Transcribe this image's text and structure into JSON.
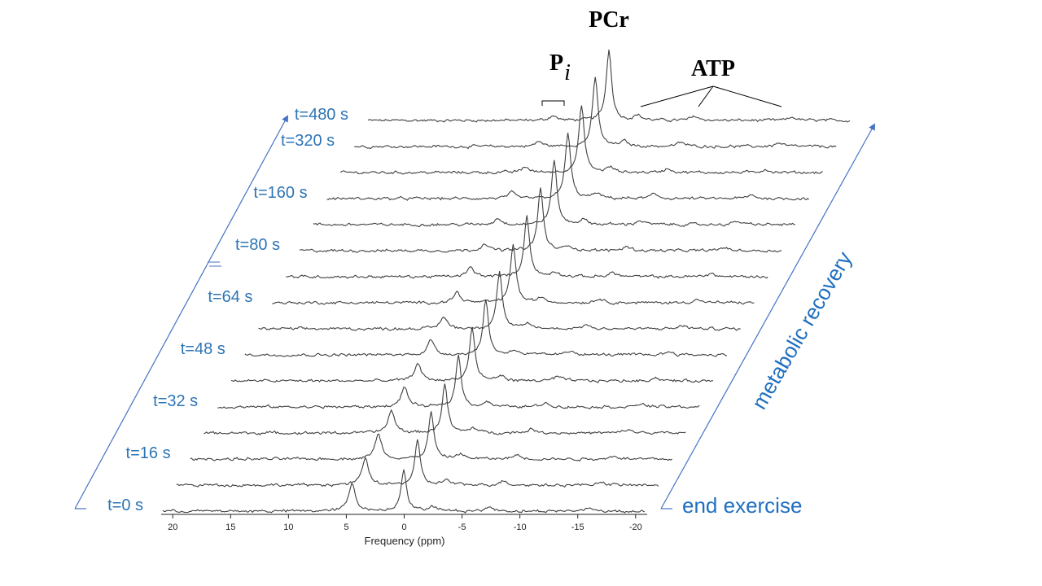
{
  "chart_data": {
    "type": "line",
    "title": "",
    "xlabel": "Frequency (ppm)",
    "xlim": [
      21,
      -21
    ],
    "x_ticks": [
      20,
      15,
      10,
      5,
      0,
      -5,
      -10,
      -15,
      -20
    ],
    "x_tick_labels": [
      "20",
      "15",
      "10",
      "5",
      "0",
      "-5",
      "-10",
      "-15",
      "-20"
    ],
    "trace_count": 16,
    "time_labels": [
      {
        "index": 0,
        "label": "t=0 s"
      },
      {
        "index": 2,
        "label": "t=16 s"
      },
      {
        "index": 4,
        "label": "t=32 s"
      },
      {
        "index": 6,
        "label": "t=48 s"
      },
      {
        "index": 8,
        "label": "t=64 s"
      },
      {
        "index": 10,
        "label": "t=80 s"
      },
      {
        "index": 12,
        "label": "t=160 s"
      },
      {
        "index": 14,
        "label": "t=320 s"
      },
      {
        "index": 15,
        "label": "t=480 s"
      }
    ],
    "peaks": {
      "pcr_ppm": 0,
      "pi_ppm_start": 4.5,
      "pi_ppm_end": 4.9,
      "atp_ppm": [
        -2.5,
        -7.5,
        -16
      ]
    },
    "series": [
      {
        "pcr_height": 52,
        "pi_ppm": 4.5,
        "pi_height": 34
      },
      {
        "pcr_height": 54,
        "pi_ppm": 4.55,
        "pi_height": 32
      },
      {
        "pcr_height": 57,
        "pi_ppm": 4.6,
        "pi_height": 30
      },
      {
        "pcr_height": 60,
        "pi_ppm": 4.65,
        "pi_height": 27
      },
      {
        "pcr_height": 63,
        "pi_ppm": 4.7,
        "pi_height": 24
      },
      {
        "pcr_height": 66,
        "pi_ppm": 4.75,
        "pi_height": 21
      },
      {
        "pcr_height": 68,
        "pi_ppm": 4.8,
        "pi_height": 18
      },
      {
        "pcr_height": 71,
        "pi_ppm": 4.85,
        "pi_height": 15
      },
      {
        "pcr_height": 73,
        "pi_ppm": 4.9,
        "pi_height": 13
      },
      {
        "pcr_height": 75,
        "pi_ppm": 4.9,
        "pi_height": 11
      },
      {
        "pcr_height": 77,
        "pi_ppm": 4.9,
        "pi_height": 9
      },
      {
        "pcr_height": 79,
        "pi_ppm": 4.9,
        "pi_height": 8
      },
      {
        "pcr_height": 81,
        "pi_ppm": 4.9,
        "pi_height": 7
      },
      {
        "pcr_height": 83,
        "pi_ppm": 4.9,
        "pi_height": 7
      },
      {
        "pcr_height": 85,
        "pi_ppm": 4.9,
        "pi_height": 6
      },
      {
        "pcr_height": 87,
        "pi_ppm": 4.9,
        "pi_height": 6
      }
    ]
  },
  "annotations": {
    "pcr": "PCr",
    "pi_letter": "P",
    "pi_subscript": "i",
    "atp": "ATP",
    "end_exercise": "end exercise",
    "metabolic_recovery": "metabolic recovery"
  },
  "colors": {
    "trace": "#404040",
    "blue_text": "#1f6fc0",
    "time_label": "#2e75b6",
    "arrow": "#4472c4"
  }
}
